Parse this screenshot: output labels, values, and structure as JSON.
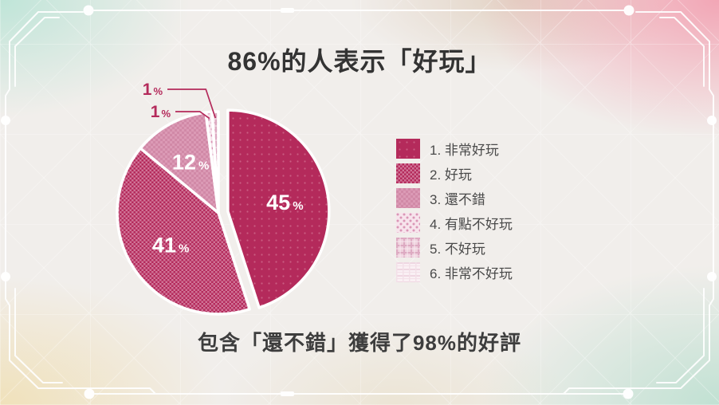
{
  "page": {
    "title": "86%的人表示「好玩」",
    "footer": "包含「還不錯」獲得了98%的好評"
  },
  "chart_data": {
    "type": "pie",
    "title": "86%的人表示「好玩」",
    "note": "包含「還不錯」獲得了98%的好評",
    "unit": "%",
    "start_angle_deg": 0,
    "direction": "clockwise",
    "legend_position": "right",
    "series": [
      {
        "label": "1. 非常好玩",
        "value": 45,
        "color": "#b42a5b",
        "pattern": "dots-dark",
        "exploded": true,
        "label_inside": true
      },
      {
        "label": "2. 好玩",
        "value": 41,
        "color": "#b42a5b",
        "pattern": "checker",
        "label_inside": true
      },
      {
        "label": "3. 還不錯",
        "value": 12,
        "color": "#d189a7",
        "pattern": "check-soft",
        "label_inside": true
      },
      {
        "label": "4. 有點不好玩",
        "value": 1,
        "color": "#f6e3eb",
        "pattern": "dots-light",
        "callout": true
      },
      {
        "label": "5. 不好玩",
        "value": 1,
        "color": "#efd2dd",
        "pattern": "plaid-light",
        "callout": true
      },
      {
        "label": "6. 非常不好玩",
        "value": 0,
        "color": "#faf0f4",
        "pattern": "stripes-faint"
      }
    ]
  },
  "colors": {
    "accent": "#b42a5b",
    "title_text": "#333333",
    "legend_text": "#4a4a4a",
    "background": "#f1eeeb",
    "frame_line": "#ffffff"
  }
}
